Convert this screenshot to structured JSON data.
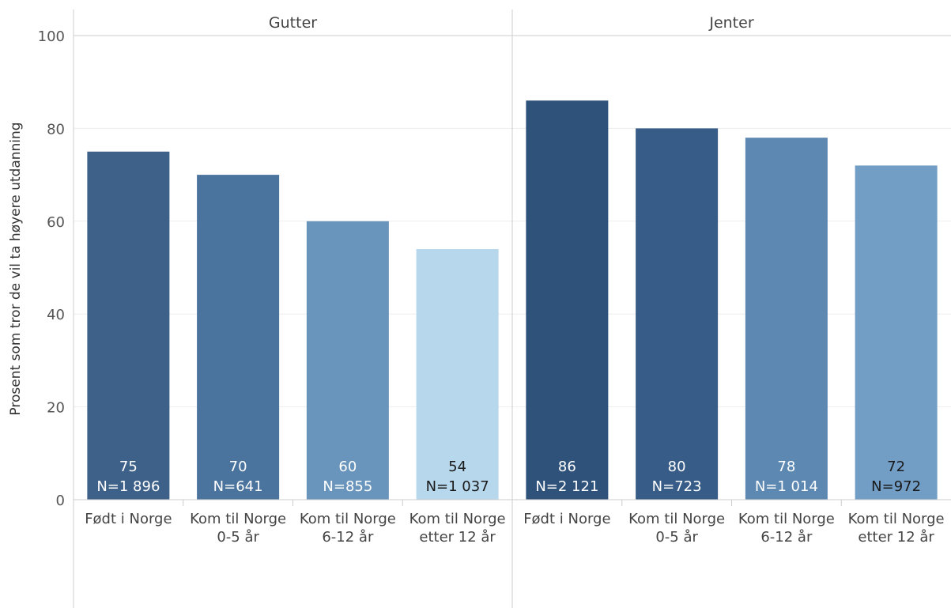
{
  "chart_data": {
    "type": "bar",
    "ylabel": "Prosent som tror de vil ta høyere utdanning",
    "ylim": [
      0,
      100
    ],
    "yticks": [
      0,
      20,
      40,
      60,
      80,
      100
    ],
    "grid": true,
    "categories": [
      "Født i Norge",
      "Kom til Norge 0-5 år",
      "Kom til Norge 6-12 år",
      "Kom til Norge etter 12 år"
    ],
    "category_lines": [
      [
        "Født i Norge"
      ],
      [
        "Kom til Norge",
        "0-5 år"
      ],
      [
        "Kom til Norge",
        "6-12 år"
      ],
      [
        "Kom til Norge",
        "etter 12 år"
      ]
    ],
    "panels": [
      {
        "title": "Gutter",
        "values": [
          75,
          70,
          60,
          54
        ],
        "value_labels": [
          "75",
          "70",
          "60",
          "54"
        ],
        "n_labels": [
          "N=1 896",
          "N=641",
          "N=855",
          "N=1 037"
        ],
        "colors": [
          "#3d6189",
          "#4a739d",
          "#6994bb",
          "#b6d7ec"
        ],
        "label_colors": [
          "#ffffff",
          "#ffffff",
          "#ffffff",
          "#1a1a1a"
        ]
      },
      {
        "title": "Jenter",
        "values": [
          86,
          80,
          78,
          72
        ],
        "value_labels": [
          "86",
          "80",
          "78",
          "72"
        ],
        "n_labels": [
          "N=2 121",
          "N=723",
          "N=1 014",
          "N=972"
        ],
        "colors": [
          "#2f527b",
          "#375c87",
          "#5c88b2",
          "#729ec6"
        ],
        "label_colors": [
          "#ffffff",
          "#ffffff",
          "#ffffff",
          "#1a1a1a"
        ]
      }
    ]
  }
}
